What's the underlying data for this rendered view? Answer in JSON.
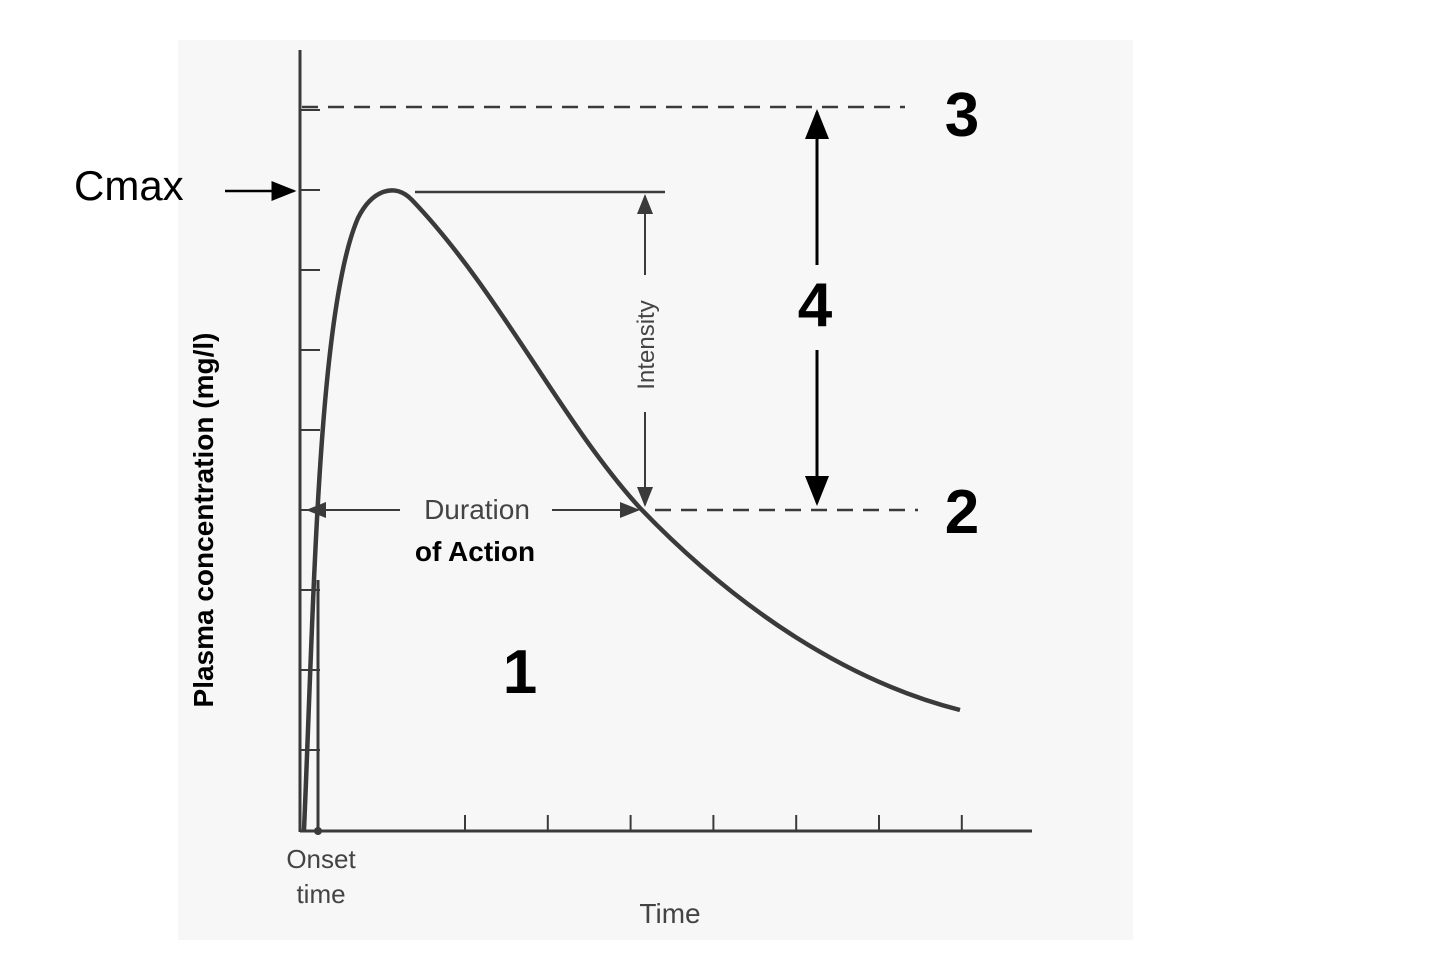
{
  "diagram": {
    "y_axis_label": "Plasma concentration (mg/l)",
    "x_axis_label": "Time",
    "cmax_label": "Cmax",
    "onset_label_line1": "Onset",
    "onset_label_line2": "time",
    "duration_label": "Duration",
    "duration_label_bold": "of Action",
    "intensity_label": "Intensity",
    "markers": {
      "one": "1",
      "two": "2",
      "three": "3",
      "four": "4"
    },
    "colors": {
      "curve": "#3a3a3a",
      "text": "#000000",
      "scan_background": "#f7f7f7"
    }
  }
}
